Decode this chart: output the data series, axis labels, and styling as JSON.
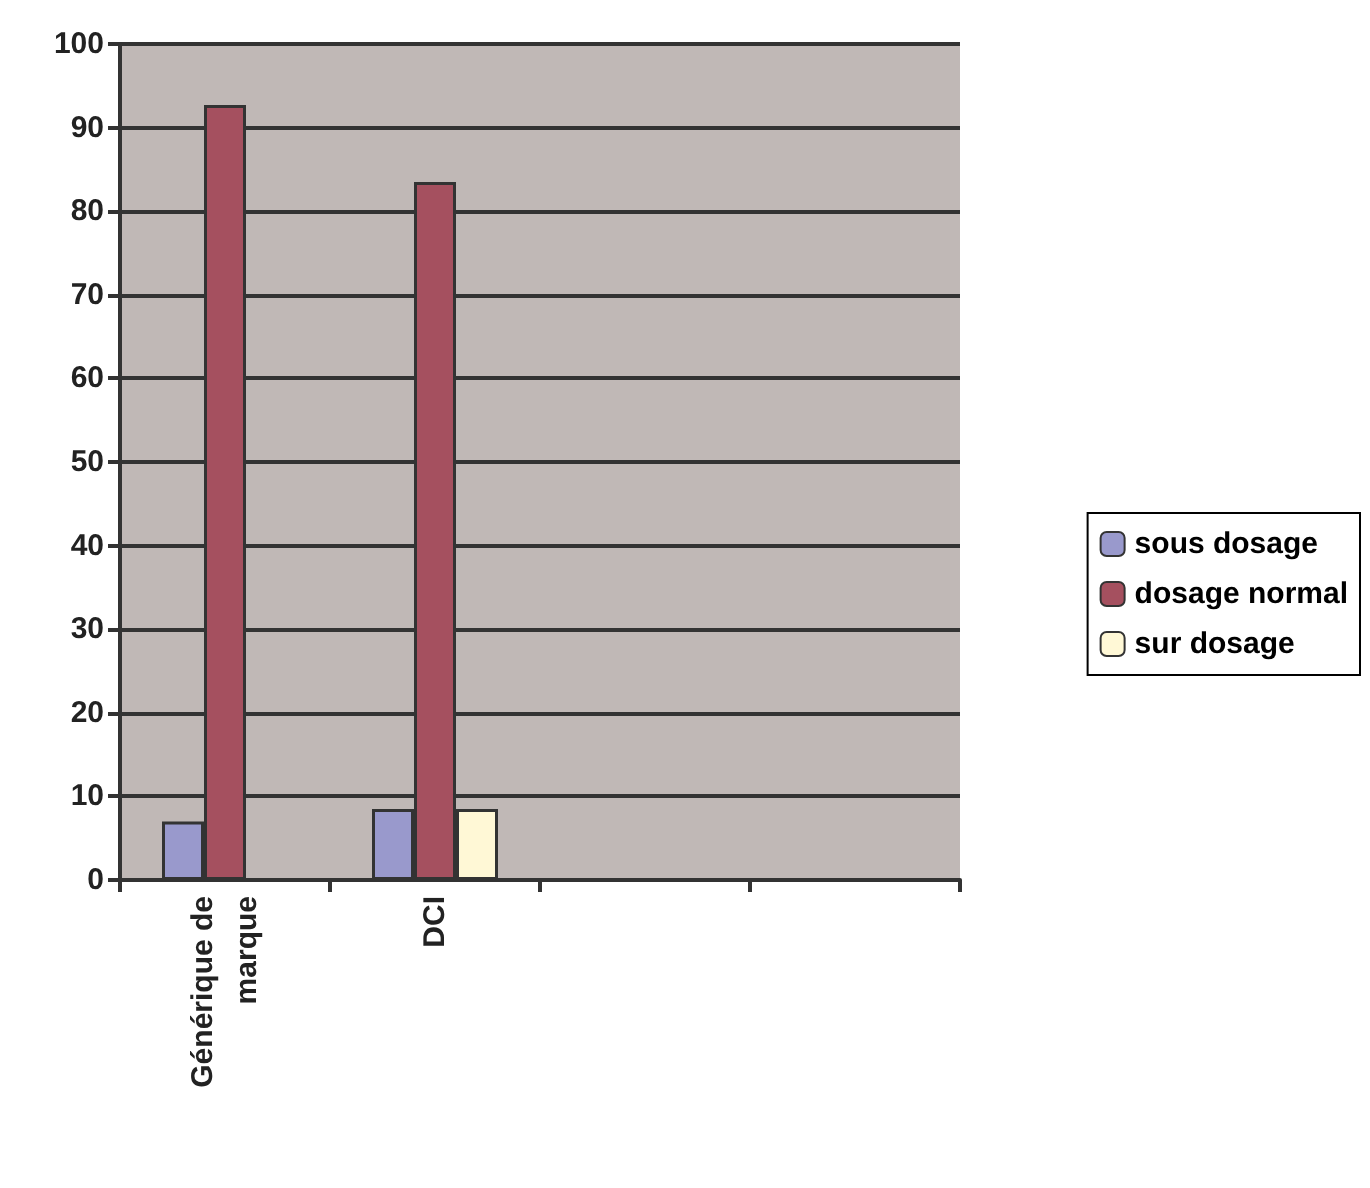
{
  "chart_data": {
    "type": "bar",
    "categories": [
      "Générique de\nmarque",
      "DCI",
      null,
      null
    ],
    "series": [
      {
        "name": "sous dosage",
        "color": "#9999cc",
        "values": [
          7,
          8.5,
          null,
          null
        ]
      },
      {
        "name": "dosage normal",
        "color": "#a5505f",
        "values": [
          92.7,
          83.5,
          null,
          null
        ]
      },
      {
        "name": "sur dosage",
        "color": "#fff8d6",
        "values": [
          null,
          8.5,
          null,
          null
        ]
      }
    ],
    "ylim": [
      0,
      100
    ],
    "yticks": [
      0,
      10,
      20,
      30,
      40,
      50,
      60,
      70,
      80,
      90,
      100
    ],
    "grid": "y",
    "legend": "right"
  }
}
